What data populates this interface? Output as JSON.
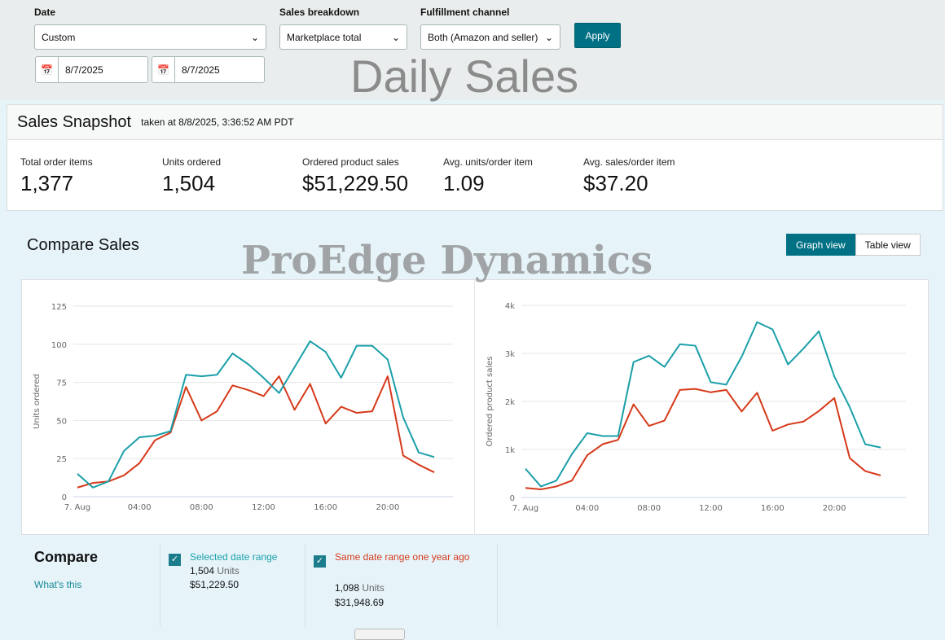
{
  "filters": {
    "date_label": "Date",
    "date_value": "Custom",
    "start_date": "8/7/2025",
    "end_date": "8/7/2025",
    "breakdown_label": "Sales breakdown",
    "breakdown_value": "Marketplace total",
    "channel_label": "Fulfillment channel",
    "channel_value": "Both (Amazon and seller)",
    "apply": "Apply"
  },
  "watermarks": {
    "title": "Daily Sales",
    "brand": "ProEdge Dynamics"
  },
  "snapshot": {
    "title": "Sales Snapshot",
    "taken": "taken at 8/8/2025, 3:36:52 AM PDT",
    "metrics": [
      {
        "label": "Total order items",
        "value": "1,377"
      },
      {
        "label": "Units ordered",
        "value": "1,504"
      },
      {
        "label": "Ordered product sales",
        "value": "$51,229.50"
      },
      {
        "label": "Avg. units/order item",
        "value": "1.09"
      },
      {
        "label": "Avg. sales/order item",
        "value": "$37.20"
      }
    ]
  },
  "compare": {
    "title": "Compare Sales",
    "graph_view": "Graph view",
    "table_view": "Table view",
    "legend_title": "Compare",
    "whats_this": "What's this",
    "selected": {
      "label": "Selected date range",
      "units": "1,504",
      "units_word": "Units",
      "sales": "$51,229.50"
    },
    "last_year": {
      "label": "Same date range one year ago",
      "units": "1,098",
      "units_word": "Units",
      "sales": "$31,948.69"
    }
  },
  "colors": {
    "selected": "#1a9fa8",
    "last_year": "#d6391a",
    "accent": "#007185"
  },
  "chart_data": [
    {
      "type": "line",
      "ylabel": "Units ordered",
      "ylim": [
        0,
        125
      ],
      "yticks": [
        "0",
        "25",
        "50",
        "75",
        "100",
        "125"
      ],
      "ytick_values": [
        0,
        25,
        50,
        75,
        100,
        125
      ],
      "xtick_labels": [
        "7. Aug",
        "04:00",
        "08:00",
        "12:00",
        "16:00",
        "20:00"
      ],
      "xtick_hours": [
        0,
        4,
        8,
        12,
        16,
        20
      ],
      "x": [
        0,
        1,
        2,
        3,
        4,
        5,
        6,
        7,
        8,
        9,
        10,
        11,
        12,
        13,
        14,
        15,
        16,
        17,
        18,
        19,
        20,
        21,
        22,
        23
      ],
      "series": [
        {
          "name": "Selected date range",
          "values": [
            15,
            6,
            10,
            30,
            39,
            40,
            43,
            80,
            79,
            80,
            94,
            87,
            78,
            68,
            85,
            102,
            95,
            78,
            99,
            99,
            90,
            52,
            29,
            26
          ]
        },
        {
          "name": "Same date range one year ago",
          "values": [
            6,
            9,
            10,
            14,
            22,
            37,
            42,
            72,
            50,
            56,
            73,
            70,
            66,
            79,
            57,
            74,
            48,
            59,
            55,
            56,
            79,
            27,
            21,
            16
          ]
        }
      ]
    },
    {
      "type": "line",
      "ylabel": "Ordered product sales",
      "ylim": [
        0,
        4000
      ],
      "yticks": [
        "0",
        "1k",
        "2k",
        "3k",
        "4k"
      ],
      "ytick_values": [
        0,
        1000,
        2000,
        3000,
        4000
      ],
      "xtick_labels": [
        "7. Aug",
        "04:00",
        "08:00",
        "12:00",
        "16:00",
        "20:00"
      ],
      "xtick_hours": [
        0,
        4,
        8,
        12,
        16,
        20
      ],
      "x": [
        0,
        1,
        2,
        3,
        4,
        5,
        6,
        7,
        8,
        9,
        10,
        11,
        12,
        13,
        14,
        15,
        16,
        17,
        18,
        19,
        20,
        21,
        22,
        23
      ],
      "series": [
        {
          "name": "Selected date range",
          "values": [
            600,
            230,
            350,
            900,
            1340,
            1280,
            1280,
            2820,
            2950,
            2720,
            3190,
            3160,
            2400,
            2350,
            2930,
            3650,
            3500,
            2770,
            3100,
            3460,
            2520,
            1880,
            1110,
            1040
          ]
        },
        {
          "name": "Same date range one year ago",
          "values": [
            200,
            170,
            230,
            350,
            880,
            1110,
            1200,
            1940,
            1490,
            1600,
            2240,
            2260,
            2190,
            2240,
            1790,
            2180,
            1390,
            1520,
            1580,
            1800,
            2070,
            820,
            550,
            460
          ]
        }
      ]
    }
  ]
}
